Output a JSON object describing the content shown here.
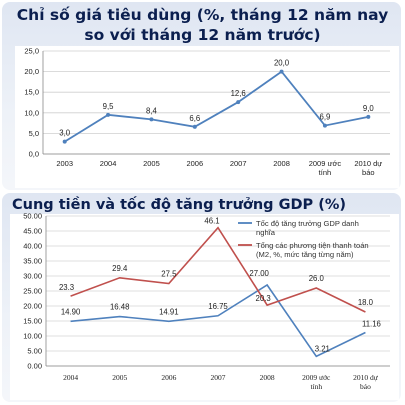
{
  "chart_data": [
    {
      "type": "line",
      "title": "Chỉ số giá tiêu dùng (%, tháng 12 năm nay so với tháng 12 năm trước)",
      "categories": [
        "2003",
        "2004",
        "2005",
        "2006",
        "2007",
        "2008",
        "2009 ước tính",
        "2010 dự báo"
      ],
      "series": [
        {
          "values": [
            3.0,
            9.5,
            8.4,
            6.6,
            12.6,
            20.0,
            6.9,
            9.0
          ],
          "labels": [
            "3,0",
            "9,5",
            "8,4",
            "6,6",
            "12,6",
            "20,0",
            "6,9",
            "9,0"
          ]
        }
      ],
      "ylim": [
        0,
        25
      ],
      "yticks": [
        "0,0",
        "5,0",
        "10,0",
        "15,0",
        "20,0",
        "25,0"
      ],
      "grid": true,
      "colors": {
        "line": "#4f81bd",
        "background": "#ffffff",
        "title": "#0b1f4f"
      }
    },
    {
      "type": "line",
      "title": "Cung tiền và tốc độ tăng trưởng GDP (%)",
      "categories": [
        "2004",
        "2005",
        "2006",
        "2007",
        "2008",
        "2009 ước tính",
        "2010 dự báo"
      ],
      "series": [
        {
          "name": "Tốc độ tăng trưởng GDP danh nghĩa",
          "values": [
            14.9,
            16.48,
            14.91,
            16.75,
            27.0,
            3.21,
            11.16
          ],
          "labels": [
            "14.90",
            "16.48",
            "14.91",
            "16.75",
            "27.00",
            "3.21",
            "11.16"
          ],
          "color": "#4f81bd"
        },
        {
          "name": "Tổng các phương tiện thanh toán (M2, %, mức tăng từng năm)",
          "values": [
            23.3,
            29.4,
            27.5,
            46.1,
            20.3,
            26.0,
            18.0
          ],
          "labels": [
            "23.3",
            "29.4",
            "27.5",
            "46.1",
            "20.3",
            "26.0",
            "18.0"
          ],
          "color": "#c0504d"
        }
      ],
      "ylim": [
        0,
        50
      ],
      "yticks": [
        "0.00",
        "5.00",
        "10.00",
        "15.00",
        "20.00",
        "25.00",
        "30.00",
        "35.00",
        "40.00",
        "45.00",
        "50.00"
      ],
      "grid": true,
      "legend": "top-right"
    }
  ]
}
